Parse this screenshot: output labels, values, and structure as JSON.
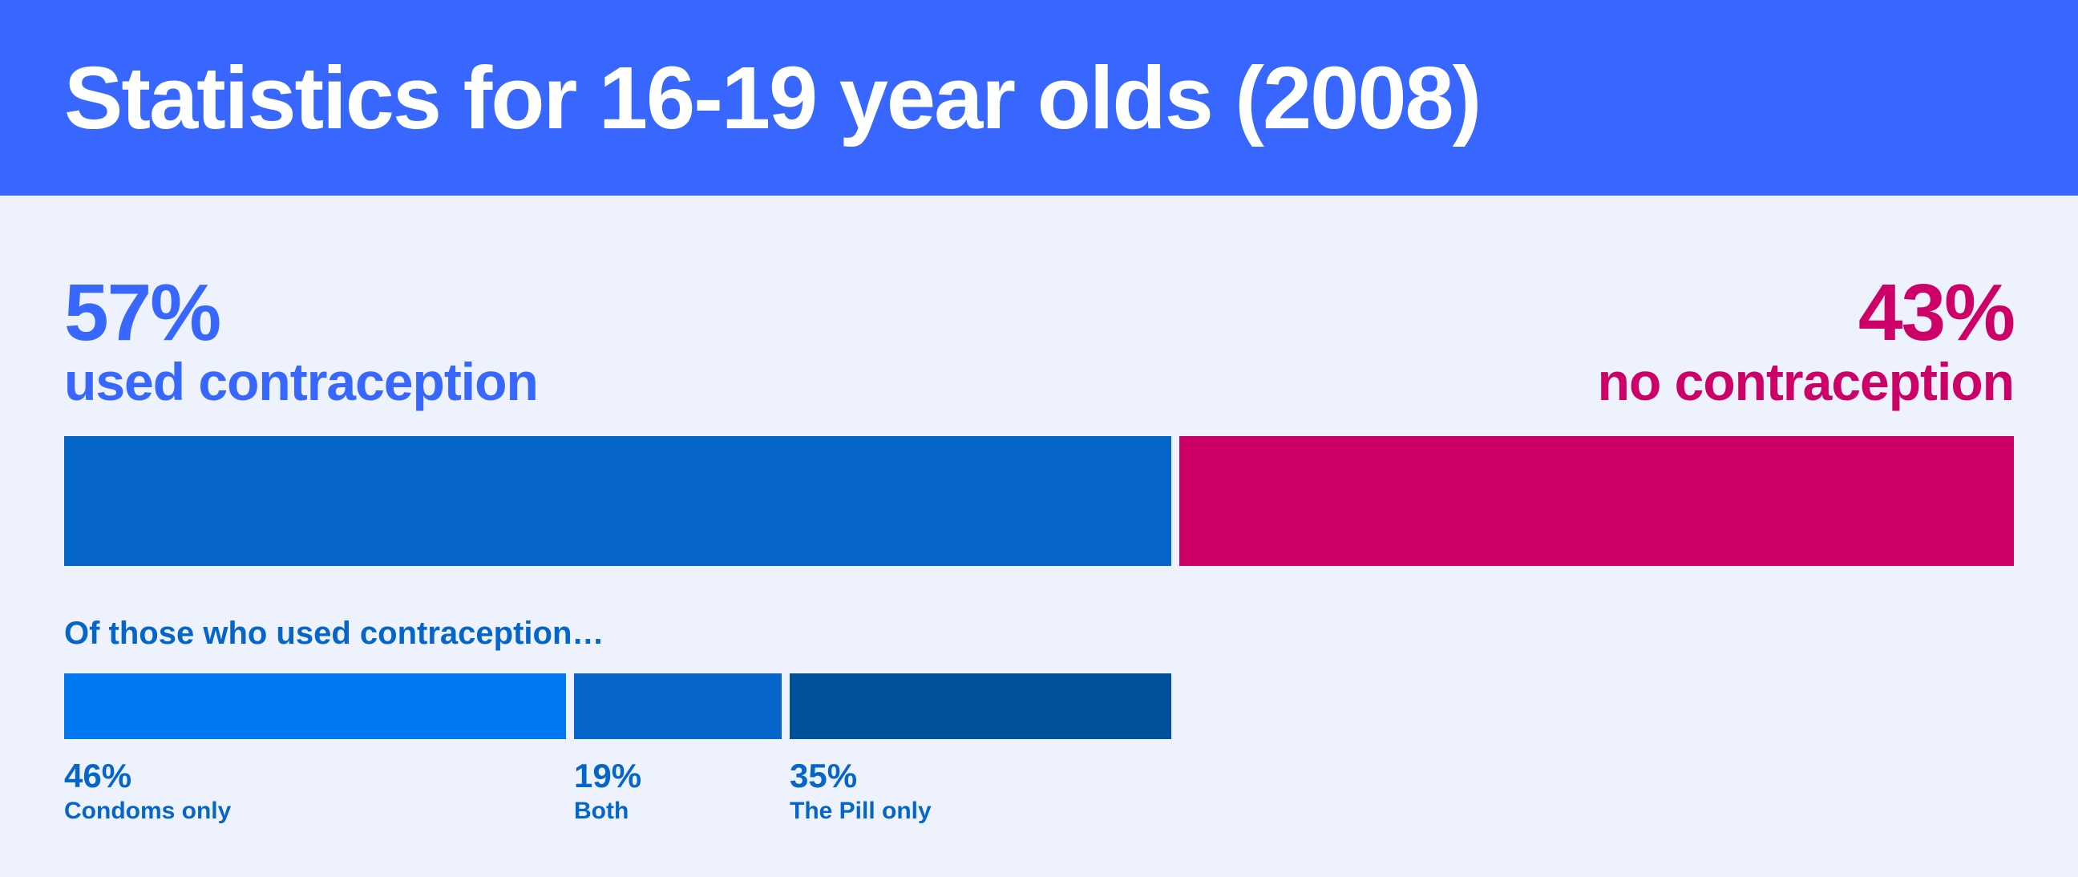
{
  "title": "Statistics for 16-19 year olds (2008)",
  "colors": {
    "header": "#3867ff",
    "background": "#eef2fc",
    "used": "#0565c8",
    "none": "#cc0066",
    "used_text": "#3867ff",
    "condoms": "#0079f2",
    "both": "#0565c8",
    "pill": "#00509d"
  },
  "chart_data": [
    {
      "type": "bar",
      "orientation": "horizontal-stacked",
      "series": [
        {
          "name": "used contraception",
          "value": 57,
          "value_label": "57%"
        },
        {
          "name": "no contraception",
          "value": 43,
          "value_label": "43%"
        }
      ]
    },
    {
      "type": "bar",
      "orientation": "horizontal-stacked",
      "title": "Of those who used contraception…",
      "series": [
        {
          "name": "Condoms only",
          "value": 46,
          "value_label": "46%"
        },
        {
          "name": "Both",
          "value": 19,
          "value_label": "19%"
        },
        {
          "name": "The Pill only",
          "value": 35,
          "value_label": "35%"
        }
      ]
    }
  ]
}
